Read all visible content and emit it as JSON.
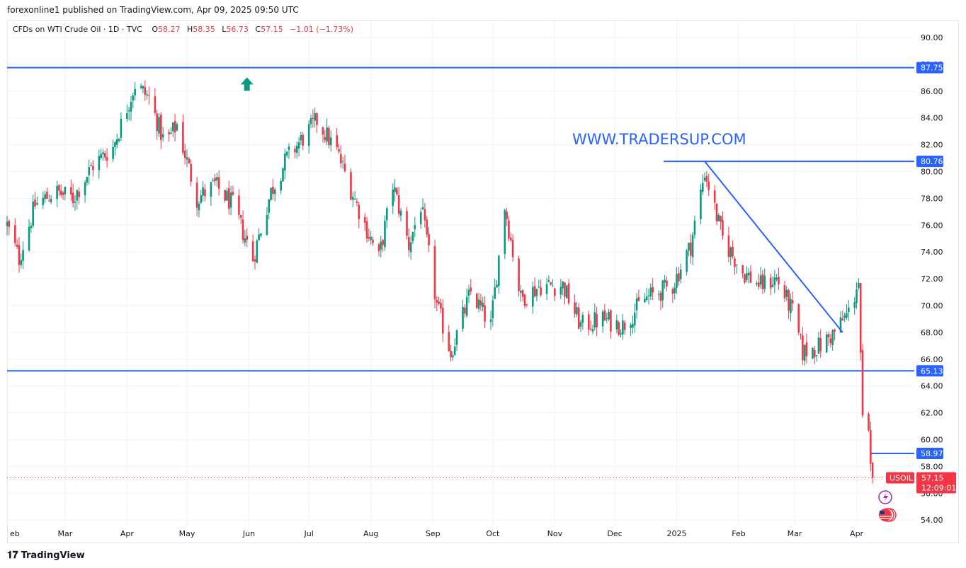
{
  "header": {
    "publish_line": "forexonline1 published on TradingView.com, Apr 09, 2025 09:50 UTC"
  },
  "legend": {
    "symbol": "CFDs on WTI Crude Oil · 1D · TVC",
    "open_label": "O",
    "open": "58.27",
    "high_label": "H",
    "high": "58.35",
    "low_label": "L",
    "low": "56.73",
    "close_label": "C",
    "close": "57.15",
    "change": "−1.01 (−1.73%)"
  },
  "watermark": "WWW.TRADERSUP.COM",
  "current_price": {
    "symbol": "USOIL",
    "price": "57.15",
    "countdown": "12:09:01"
  },
  "footer": {
    "brand": "TradingView"
  },
  "colors": {
    "up": "#089981",
    "down": "#f23645",
    "line": "#2962ff",
    "grid": "#f0f3fa"
  },
  "chart_data": {
    "type": "candlestick",
    "y_axis": {
      "min": 54,
      "max": 90,
      "step": 2,
      "ticks": [
        "90.00",
        "88.00",
        "86.00",
        "84.00",
        "82.00",
        "80.00",
        "78.00",
        "76.00",
        "74.00",
        "72.00",
        "70.00",
        "68.00",
        "66.00",
        "64.00",
        "62.00",
        "60.00",
        "58.00",
        "56.00",
        "54.00"
      ]
    },
    "x_axis": {
      "labels": [
        "Feb",
        "Mar",
        "Apr",
        "May",
        "Jun",
        "Jul",
        "Aug",
        "Sep",
        "Oct",
        "Nov",
        "Dec",
        "2025",
        "Feb",
        "Mar",
        "Apr"
      ]
    },
    "horizontal_levels": [
      {
        "value": 87.75,
        "label": "87.75"
      },
      {
        "value": 80.76,
        "label": "80.76"
      },
      {
        "value": 65.13,
        "label": "65.13"
      },
      {
        "value": 58.97,
        "label": "58.97"
      }
    ],
    "trendline": {
      "from": {
        "date": "2025-01-15",
        "price": 80.76
      },
      "to": {
        "date": "2025-03-25",
        "price": 68.0
      }
    },
    "close_path": [
      {
        "date": "2024-02-01",
        "price": 76.0
      },
      {
        "date": "2024-02-07",
        "price": 73.5
      },
      {
        "date": "2024-02-15",
        "price": 77.5
      },
      {
        "date": "2024-02-25",
        "price": 78.5
      },
      {
        "date": "2024-03-05",
        "price": 78.0
      },
      {
        "date": "2024-03-15",
        "price": 80.5
      },
      {
        "date": "2024-03-25",
        "price": 81.8
      },
      {
        "date": "2024-04-05",
        "price": 86.5
      },
      {
        "date": "2024-04-12",
        "price": 85.5
      },
      {
        "date": "2024-04-20",
        "price": 82.0
      },
      {
        "date": "2024-04-26",
        "price": 83.5
      },
      {
        "date": "2024-05-06",
        "price": 78.0
      },
      {
        "date": "2024-05-15",
        "price": 79.0
      },
      {
        "date": "2024-05-24",
        "price": 77.5
      },
      {
        "date": "2024-06-03",
        "price": 73.5
      },
      {
        "date": "2024-06-12",
        "price": 78.5
      },
      {
        "date": "2024-06-20",
        "price": 81.0
      },
      {
        "date": "2024-07-05",
        "price": 83.8
      },
      {
        "date": "2024-07-15",
        "price": 81.5
      },
      {
        "date": "2024-07-25",
        "price": 77.5
      },
      {
        "date": "2024-08-05",
        "price": 73.5
      },
      {
        "date": "2024-08-12",
        "price": 79.0
      },
      {
        "date": "2024-08-20",
        "price": 74.5
      },
      {
        "date": "2024-08-26",
        "price": 77.5
      },
      {
        "date": "2024-09-03",
        "price": 70.0
      },
      {
        "date": "2024-09-10",
        "price": 66.5
      },
      {
        "date": "2024-09-20",
        "price": 71.0
      },
      {
        "date": "2024-09-30",
        "price": 68.5
      },
      {
        "date": "2024-10-07",
        "price": 77.5
      },
      {
        "date": "2024-10-15",
        "price": 70.5
      },
      {
        "date": "2024-10-25",
        "price": 71.5
      },
      {
        "date": "2024-11-05",
        "price": 71.5
      },
      {
        "date": "2024-11-14",
        "price": 68.5
      },
      {
        "date": "2024-11-25",
        "price": 69.0
      },
      {
        "date": "2024-12-05",
        "price": 68.5
      },
      {
        "date": "2024-12-16",
        "price": 70.5
      },
      {
        "date": "2024-12-30",
        "price": 71.5
      },
      {
        "date": "2025-01-08",
        "price": 74.5
      },
      {
        "date": "2025-01-15",
        "price": 80.0
      },
      {
        "date": "2025-01-24",
        "price": 75.0
      },
      {
        "date": "2025-02-03",
        "price": 72.5
      },
      {
        "date": "2025-02-12",
        "price": 71.5
      },
      {
        "date": "2025-02-20",
        "price": 72.0
      },
      {
        "date": "2025-02-28",
        "price": 69.5
      },
      {
        "date": "2025-03-05",
        "price": 66.5
      },
      {
        "date": "2025-03-14",
        "price": 67.0
      },
      {
        "date": "2025-03-21",
        "price": 68.0
      },
      {
        "date": "2025-03-28",
        "price": 69.5
      },
      {
        "date": "2025-04-01",
        "price": 71.2
      },
      {
        "date": "2025-04-02",
        "price": 71.7
      },
      {
        "date": "2025-04-03",
        "price": 66.5
      },
      {
        "date": "2025-04-04",
        "price": 61.8
      },
      {
        "date": "2025-04-07",
        "price": 60.7
      },
      {
        "date": "2025-04-08",
        "price": 58.2
      },
      {
        "date": "2025-04-09",
        "price": 57.15
      }
    ]
  }
}
